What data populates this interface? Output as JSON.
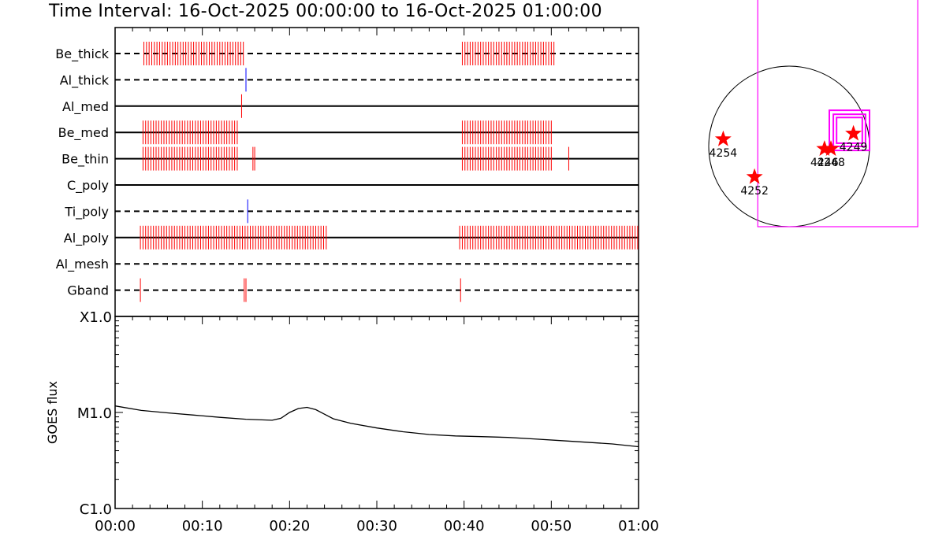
{
  "title": "Time Interval: 16-Oct-2025 00:00:00 to 16-Oct-2025 01:00:00",
  "colors": {
    "attenuator": "#ff0000",
    "open": "#0000ff",
    "box": "#ff00ff",
    "axis": "#000000"
  },
  "chart_data": [
    {
      "type": "event-timeline",
      "x_unit": "minutes after 00:00",
      "xlim": [
        0,
        60
      ],
      "channels": [
        {
          "name": "Be_thick",
          "style": "dashed",
          "color": "red",
          "ticks": [
            3.3,
            3.6,
            3.9,
            4.2,
            4.5,
            4.8,
            5.1,
            5.4,
            5.7,
            6.0,
            6.3,
            6.6,
            6.9,
            7.2,
            7.5,
            7.8,
            8.1,
            8.4,
            8.7,
            9.0,
            9.3,
            9.6,
            9.9,
            10.2,
            10.5,
            10.8,
            11.1,
            11.4,
            11.7,
            12.0,
            12.3,
            12.6,
            12.9,
            13.2,
            13.5,
            13.8,
            14.1,
            14.4,
            14.7,
            39.8,
            40.1,
            40.4,
            40.7,
            41.0,
            41.3,
            41.6,
            41.9,
            42.2,
            42.5,
            42.8,
            43.1,
            43.4,
            43.7,
            44.0,
            44.3,
            44.6,
            44.9,
            45.2,
            45.5,
            45.8,
            46.1,
            46.4,
            46.7,
            47.0,
            47.3,
            47.6,
            47.9,
            48.2,
            48.5,
            48.8,
            49.1,
            49.4,
            49.7,
            50.0,
            50.3
          ]
        },
        {
          "name": "Al_thick",
          "style": "dashed",
          "color": "blue",
          "ticks": [
            15.0
          ]
        },
        {
          "name": "Al_med",
          "style": "solid",
          "color": "red",
          "ticks": [
            14.5
          ]
        },
        {
          "name": "Be_med",
          "style": "solid",
          "color": "red",
          "ticks": [
            3.2,
            3.5,
            3.8,
            4.1,
            4.4,
            4.7,
            5.0,
            5.3,
            5.6,
            5.9,
            6.2,
            6.5,
            6.8,
            7.1,
            7.4,
            7.7,
            8.0,
            8.3,
            8.6,
            8.9,
            9.2,
            9.5,
            9.8,
            10.1,
            10.4,
            10.7,
            11.0,
            11.3,
            11.6,
            11.9,
            12.2,
            12.5,
            12.8,
            13.1,
            13.4,
            13.7,
            14.0,
            39.8,
            40.1,
            40.4,
            40.7,
            41.0,
            41.3,
            41.6,
            41.9,
            42.2,
            42.5,
            42.8,
            43.1,
            43.4,
            43.7,
            44.0,
            44.3,
            44.6,
            44.9,
            45.2,
            45.5,
            45.8,
            46.1,
            46.4,
            46.7,
            47.0,
            47.3,
            47.6,
            47.9,
            48.2,
            48.5,
            48.8,
            49.1,
            49.4,
            49.7,
            50.0
          ]
        },
        {
          "name": "Be_thin",
          "style": "solid",
          "color": "red",
          "ticks": [
            3.2,
            3.5,
            3.8,
            4.1,
            4.4,
            4.7,
            5.0,
            5.3,
            5.6,
            5.9,
            6.2,
            6.5,
            6.8,
            7.1,
            7.4,
            7.7,
            8.0,
            8.3,
            8.6,
            8.9,
            9.2,
            9.5,
            9.8,
            10.1,
            10.4,
            10.7,
            11.0,
            11.3,
            11.6,
            11.9,
            12.2,
            12.5,
            12.8,
            13.1,
            13.4,
            13.7,
            14.0,
            15.8,
            16.0,
            39.8,
            40.1,
            40.4,
            40.7,
            41.0,
            41.3,
            41.6,
            41.9,
            42.2,
            42.5,
            42.8,
            43.1,
            43.4,
            43.7,
            44.0,
            44.3,
            44.6,
            44.9,
            45.2,
            45.5,
            45.8,
            46.1,
            46.4,
            46.7,
            47.0,
            47.3,
            47.6,
            47.9,
            48.2,
            48.5,
            48.8,
            49.1,
            49.4,
            49.7,
            50.0,
            52.0
          ]
        },
        {
          "name": "C_poly",
          "style": "solid",
          "color": "red",
          "ticks": []
        },
        {
          "name": "Ti_poly",
          "style": "dashed",
          "color": "blue",
          "ticks": [
            15.2
          ]
        },
        {
          "name": "Al_poly",
          "style": "solid",
          "color": "red",
          "ticks": [
            2.9,
            3.2,
            3.5,
            3.8,
            4.1,
            4.4,
            4.7,
            5.0,
            5.3,
            5.6,
            5.9,
            6.2,
            6.5,
            6.8,
            7.1,
            7.4,
            7.7,
            8.0,
            8.3,
            8.6,
            8.9,
            9.2,
            9.5,
            9.8,
            10.1,
            10.4,
            10.7,
            11.0,
            11.3,
            11.6,
            11.9,
            12.2,
            12.5,
            12.8,
            13.1,
            13.4,
            13.7,
            14.0,
            14.3,
            14.6,
            14.9,
            15.2,
            15.5,
            15.8,
            16.1,
            16.4,
            16.7,
            17.0,
            17.3,
            17.6,
            17.9,
            18.2,
            18.5,
            18.8,
            19.1,
            19.4,
            19.7,
            20.0,
            20.3,
            20.6,
            20.9,
            21.2,
            21.5,
            21.8,
            22.1,
            22.4,
            22.7,
            23.0,
            23.3,
            23.6,
            23.9,
            24.2,
            39.5,
            39.8,
            40.1,
            40.4,
            40.7,
            41.0,
            41.3,
            41.6,
            41.9,
            42.2,
            42.5,
            42.8,
            43.1,
            43.4,
            43.7,
            44.0,
            44.3,
            44.6,
            44.9,
            45.2,
            45.5,
            45.8,
            46.1,
            46.4,
            46.7,
            47.0,
            47.3,
            47.6,
            47.9,
            48.2,
            48.5,
            48.8,
            49.1,
            49.4,
            49.7,
            50.0,
            50.3,
            50.6,
            50.9,
            51.2,
            51.5,
            51.8,
            52.1,
            52.4,
            52.7,
            53.0,
            53.3,
            53.6,
            53.9,
            54.2,
            54.5,
            54.8,
            55.1,
            55.4,
            55.7,
            56.0,
            56.3,
            56.6,
            56.9,
            57.2,
            57.5,
            57.8,
            58.1,
            58.4,
            58.7,
            59.0,
            59.3,
            59.6,
            59.9
          ]
        },
        {
          "name": "Al_mesh",
          "style": "dashed",
          "color": "red",
          "ticks": []
        },
        {
          "name": "Gband",
          "style": "dashed",
          "color": "red",
          "ticks": [
            2.9,
            14.8,
            15.0,
            39.6
          ]
        }
      ]
    },
    {
      "type": "line",
      "ylabel": "GOES flux",
      "y_scale": "log",
      "ylim": [
        1e-06,
        0.0001
      ],
      "y_ticks": [
        {
          "label": "X1.0",
          "value": 0.0001
        },
        {
          "label": "M1.0",
          "value": 1e-05
        },
        {
          "label": "C1.0",
          "value": 1e-06
        }
      ],
      "x_ticks": [
        "00:00",
        "00:10",
        "00:20",
        "00:30",
        "00:40",
        "00:50",
        "01:00"
      ],
      "x_unit": "minutes after 00:00",
      "series": [
        {
          "x": [
            0,
            3,
            6,
            9,
            12,
            15,
            18,
            19,
            20,
            21,
            22,
            23,
            24,
            25,
            27,
            30,
            33,
            36,
            39,
            42,
            45,
            48,
            51,
            54,
            57,
            60
          ],
          "y": [
            1.17e-05,
            1.05e-05,
            9.9e-06,
            9.4e-06,
            8.9e-06,
            8.5e-06,
            8.3e-06,
            8.7e-06,
            1e-05,
            1.1e-05,
            1.13e-05,
            1.07e-05,
            9.6e-06,
            8.6e-06,
            7.7e-06,
            6.9e-06,
            6.3e-06,
            5.9e-06,
            5.7e-06,
            5.6e-06,
            5.5e-06,
            5.3e-06,
            5.1e-06,
            4.9e-06,
            4.7e-06,
            4.4e-06
          ]
        }
      ]
    },
    {
      "type": "scatter",
      "xlim": [
        -1000,
        1000
      ],
      "ylim": [
        -1000,
        1000
      ],
      "points": [
        {
          "x": 800,
          "y": 160,
          "label": "4249"
        },
        {
          "x": 440,
          "y": -30,
          "label": "4246"
        },
        {
          "x": 520,
          "y": -30,
          "label": "4248"
        },
        {
          "x": -820,
          "y": 90,
          "label": "4254"
        },
        {
          "x": -430,
          "y": -380,
          "label": "4252"
        }
      ],
      "boxes": [
        {
          "x0": -390,
          "x1": 1600,
          "y0": -1000,
          "y1": 2200
        },
        {
          "x0": 500,
          "x1": 1000,
          "y0": -50,
          "y1": 450
        },
        {
          "x0": 550,
          "x1": 950,
          "y0": 0,
          "y1": 400
        },
        {
          "x0": 590,
          "x1": 910,
          "y0": 40,
          "y1": 360
        }
      ]
    }
  ]
}
